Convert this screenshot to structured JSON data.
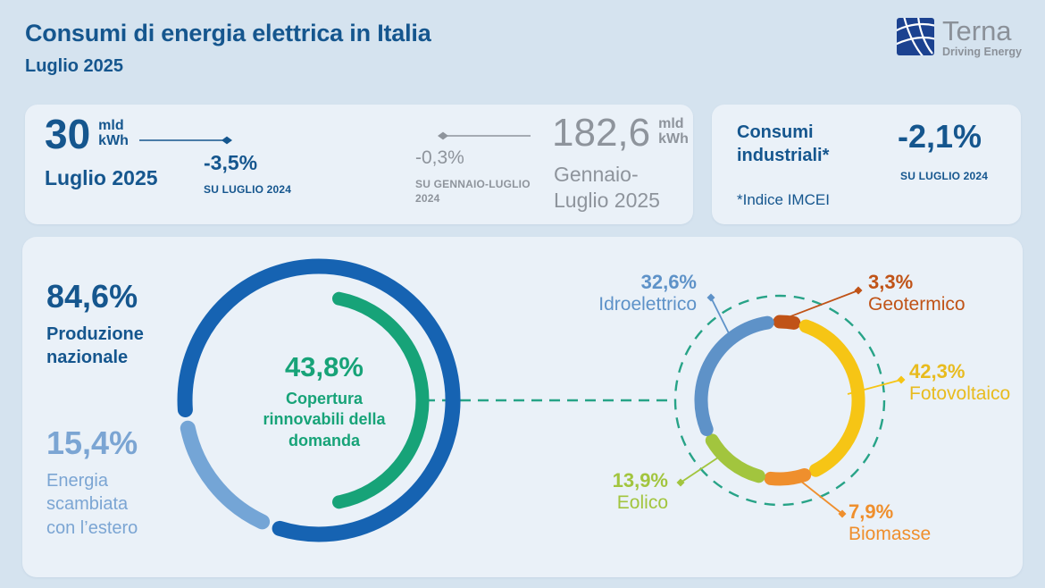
{
  "header": {
    "title": "Consumi di energia elettrica in Italia",
    "subtitle": "Luglio 2025",
    "brand": {
      "name": "Terna",
      "tagline": "Driving Energy"
    }
  },
  "cards": {
    "monthly": {
      "value": "30",
      "unit": "mld\nkWh",
      "period": "Luglio 2025",
      "delta": "-3,5%",
      "delta_caption": "SU LUGLIO 2024"
    },
    "ytd": {
      "delta": "-0,3%",
      "delta_caption": "SU GENNAIO-LUGLIO\n2024",
      "value": "182,6",
      "unit": "mld\nkWh",
      "period": "Gennaio-\nLuglio 2025"
    },
    "industrial": {
      "title": "Consumi\nindustriali*",
      "footnote": "*Indice IMCEI",
      "delta": "-2,1%",
      "delta_caption": "SU LUGLIO 2024"
    }
  },
  "main": {
    "production": {
      "value": "84,6%",
      "label": "Produzione\nnazionale"
    },
    "exchange": {
      "value": "15,4%",
      "label": "Energia\nscambiata\ncon l’estero"
    },
    "coverage": {
      "value": "43,8%",
      "label": "Copertura\nrinnovabili della\ndomanda"
    },
    "renewables_labels": {
      "idroelettrico": {
        "pct": "32,6%",
        "name": "Idroelettrico"
      },
      "geotermico": {
        "pct": "3,3%",
        "name": "Geotermico"
      },
      "fotovoltaico": {
        "pct": "42,3%",
        "name": "Fotovoltaico"
      },
      "eolico": {
        "pct": "13,9%",
        "name": "Eolico"
      },
      "biomasse": {
        "pct": "7,9%",
        "name": "Biomasse"
      }
    }
  },
  "colors": {
    "page_bg": "#d5e3ef",
    "card_bg": "#eaf1f8",
    "dark_blue": "#15568e",
    "gray": "#8e949c",
    "light_blue": "#7ba5d3",
    "green": "#17a378",
    "teal_dashed": "#27a387"
  },
  "chart_data": [
    {
      "type": "donut",
      "name": "bilancio-domanda",
      "segments": [
        {
          "label": "Produzione nazionale",
          "value": 84.6,
          "color": "#1663b2"
        },
        {
          "label": "Energia scambiata con l'estero",
          "value": 15.4,
          "color": "#74a5d6"
        }
      ],
      "inner_arc": {
        "label": "Copertura rinnovabili della domanda",
        "value": 43.8,
        "color": "#17a378"
      }
    },
    {
      "type": "donut",
      "name": "mix-rinnovabili",
      "segments": [
        {
          "label": "Geotermico",
          "value": 3.3,
          "color": "#c05317"
        },
        {
          "label": "Fotovoltaico",
          "value": 42.3,
          "color": "#f6c515"
        },
        {
          "label": "Biomasse",
          "value": 7.9,
          "color": "#ef8f2d"
        },
        {
          "label": "Eolico",
          "value": 13.9,
          "color": "#a2c53e"
        },
        {
          "label": "Idroelettrico",
          "value": 32.6,
          "color": "#5e92c8"
        }
      ]
    }
  ]
}
